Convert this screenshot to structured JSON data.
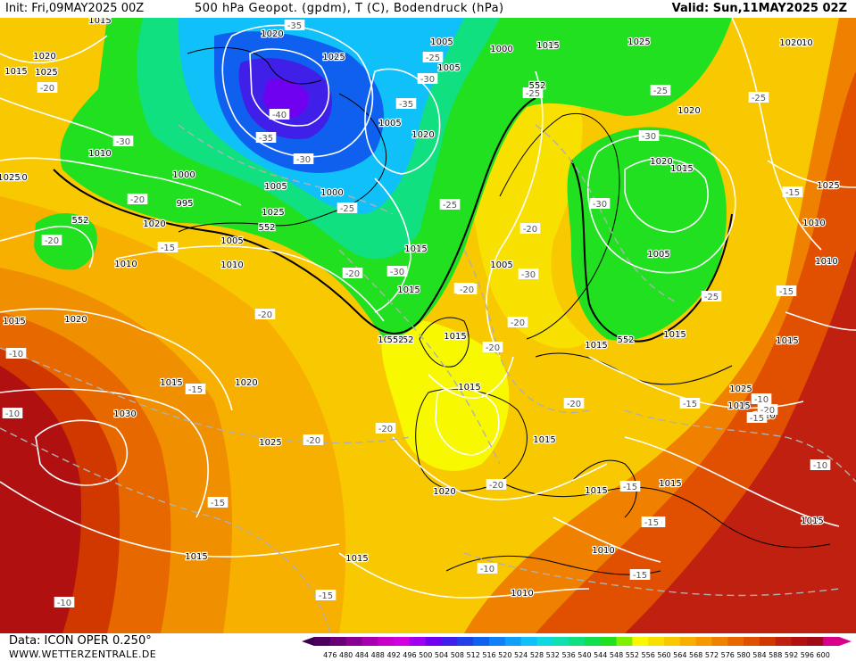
{
  "header": {
    "init": "Init: Fri,09MAY2025 00Z",
    "title": "500 hPa Geopot. (gpdm), T (C), Bodendruck (hPa)",
    "valid": "Valid: Sun,11MAY2025 02Z"
  },
  "footer": {
    "data_source": "Data: ICON OPER 0.250°",
    "website": "WWW.WETTERZENTRALE.DE"
  },
  "legend": {
    "values": [
      "476",
      "480",
      "484",
      "488",
      "492",
      "496",
      "500",
      "504",
      "508",
      "512",
      "516",
      "520",
      "524",
      "528",
      "532",
      "536",
      "540",
      "544",
      "548",
      "552",
      "556",
      "560",
      "564",
      "568",
      "572",
      "576",
      "580",
      "584",
      "588",
      "592",
      "596",
      "600"
    ],
    "colors": [
      "#4b0060",
      "#6a0078",
      "#8a0090",
      "#a800b0",
      "#c600c8",
      "#d000e0",
      "#a000f0",
      "#7000f0",
      "#4020e8",
      "#2040e8",
      "#1060f0",
      "#1080f8",
      "#10a0f8",
      "#10c0f8",
      "#10d8e0",
      "#10e0b0",
      "#10e080",
      "#10e050",
      "#20e020",
      "#80f000",
      "#f8f800",
      "#f8e000",
      "#f8c800",
      "#f8b000",
      "#f89800",
      "#f08000",
      "#e86800",
      "#e05000",
      "#d03800",
      "#c02010",
      "#b01010",
      "#a00a18",
      "#d8008a"
    ]
  },
  "pressure_labels": [
    "1015",
    "1020",
    "1025",
    "1020",
    "1025",
    "1005",
    "1000",
    "1015",
    "1025",
    "1020",
    "1005",
    "1010",
    "1000",
    "995",
    "1005",
    "1000",
    "1005",
    "1020",
    "1025",
    "1020",
    "1005",
    "1010",
    "1010",
    "1015",
    "1015",
    "1005",
    "1020",
    "1015",
    "1005",
    "1020",
    "1010",
    "1010",
    "1015",
    "1020",
    "1025",
    "1010",
    "1015",
    "1015",
    "1015",
    "1025",
    "1030",
    "1015",
    "1020",
    "1025",
    "1015",
    "1015",
    "1020",
    "1015",
    "1015",
    "1010",
    "1015",
    "1010",
    "1010",
    "1015",
    "1015",
    "1010",
    "1015",
    "1015",
    "1015",
    "1020",
    "1015",
    "1025"
  ],
  "temperature_labels": [
    "-35",
    "-25",
    "-30",
    "-20",
    "-30",
    "-35",
    "-40",
    "-35",
    "-30",
    "-25",
    "-25",
    "-25",
    "-20",
    "-30",
    "-20",
    "-15",
    "-20",
    "-20",
    "-30",
    "-20",
    "-30",
    "-25",
    "-20",
    "-25",
    "-25",
    "-20",
    "-20",
    "-20",
    "-30",
    "-15",
    "-15",
    "-10",
    "-10",
    "-15",
    "-20",
    "-20",
    "-20",
    "-20",
    "-15",
    "-20",
    "-10",
    "-15",
    "-15",
    "-10",
    "-15",
    "-10",
    "-10",
    "-15",
    "-10",
    "-15",
    "-15"
  ],
  "geopotential_labels": [
    "552",
    "552",
    "552",
    "552",
    "552",
    "552"
  ]
}
